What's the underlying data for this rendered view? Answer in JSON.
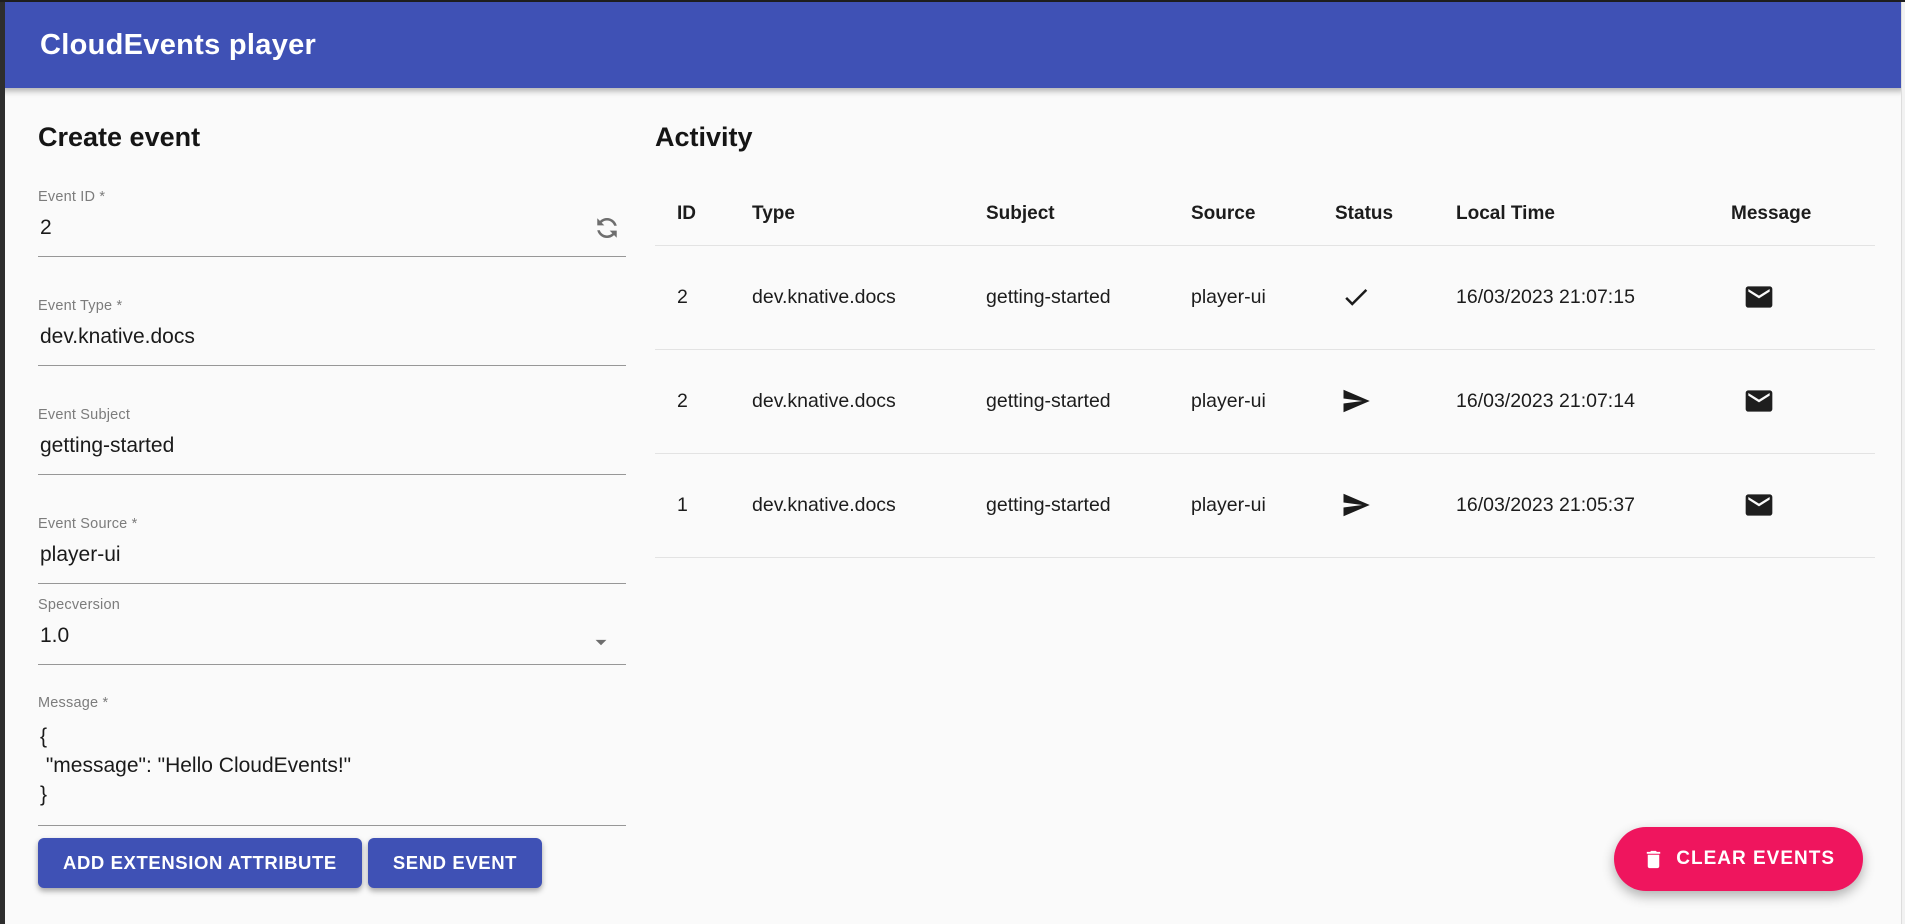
{
  "app_bar": {
    "title": "CloudEvents player"
  },
  "colors": {
    "app_bar_bg": "#3F51B5",
    "primary_button_bg": "#3F51B5",
    "clear_button_bg": "#EF155E",
    "page_bg": "#FAFAFA"
  },
  "create_event": {
    "title": "Create event",
    "event_id": {
      "label": "Event ID *",
      "value": "2"
    },
    "event_type": {
      "label": "Event Type *",
      "value": "dev.knative.docs"
    },
    "event_subject": {
      "label": "Event Subject",
      "value": "getting-started"
    },
    "event_source": {
      "label": "Event Source *",
      "value": "player-ui"
    },
    "specversion": {
      "label": "Specversion",
      "value": "1.0"
    },
    "message": {
      "label": "Message *",
      "value": "{\n \"message\": \"Hello CloudEvents!\"\n}"
    },
    "buttons": {
      "add_extension_attribute": "ADD EXTENSION ATTRIBUTE",
      "send_event": "SEND EVENT"
    }
  },
  "activity": {
    "title": "Activity",
    "columns": [
      "ID",
      "Type",
      "Subject",
      "Source",
      "Status",
      "Local Time",
      "Message"
    ],
    "rows": [
      {
        "id": "2",
        "type": "dev.knative.docs",
        "subject": "getting-started",
        "source": "player-ui",
        "status_icon": "check-icon",
        "local_time": "16/03/2023 21:07:15",
        "message_icon": "email-icon"
      },
      {
        "id": "2",
        "type": "dev.knative.docs",
        "subject": "getting-started",
        "source": "player-ui",
        "status_icon": "send-icon",
        "local_time": "16/03/2023 21:07:14",
        "message_icon": "email-icon"
      },
      {
        "id": "1",
        "type": "dev.knative.docs",
        "subject": "getting-started",
        "source": "player-ui",
        "status_icon": "send-icon",
        "local_time": "16/03/2023 21:05:37",
        "message_icon": "email-icon"
      }
    ],
    "clear_events_button": "CLEAR EVENTS"
  }
}
